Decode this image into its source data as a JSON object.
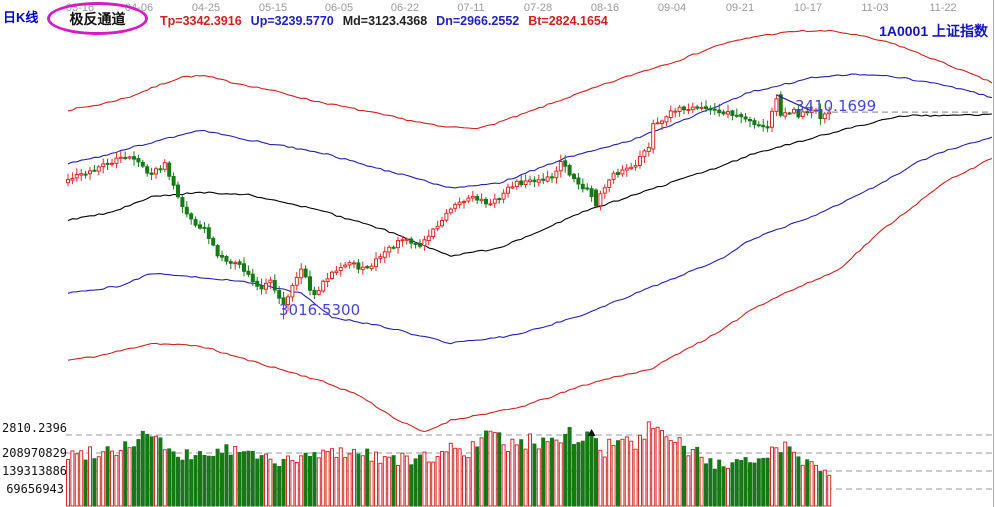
{
  "header": {
    "kline_label": "日K线",
    "channel_label": "极反通道",
    "params": {
      "tp": "Tp=3342.3916",
      "up": "Up=3239.5770",
      "md": "Md=3123.4368",
      "dn": "Dn=2966.2552",
      "bt": "Bt=2824.1654"
    },
    "symbol": "1A0001 上证指数"
  },
  "chart_data": {
    "type": "candlestick",
    "title": "1A0001 上证指数 日K线 极反通道",
    "x_axis": {
      "tick_labels": [
        "03-16",
        "04-06",
        "04-25",
        "05-15",
        "06-05",
        "06-22",
        "07-11",
        "07-28",
        "08-16",
        "09-04",
        "09-21",
        "10-17",
        "11-03",
        "11-22"
      ]
    },
    "y_axis": {
      "top_price": 3566,
      "bottom_price": 2810.2396
    },
    "indicator": {
      "name": "极反通道",
      "values": {
        "Tp": 3342.3916,
        "Up": 3239.577,
        "Md": 3123.4368,
        "Dn": 2966.2552,
        "Bt": 2824.1654
      }
    },
    "volume_axis": {
      "labels": [
        "208970829",
        "139313886",
        "69656943"
      ],
      "values": [
        208970829,
        139313886,
        69656943
      ],
      "gridline_step": 69656943,
      "gridline_count": 4
    },
    "annotations": {
      "last_price": 3410.1699,
      "last_price_label": "3410.1699",
      "low_price": 3016.53,
      "low_price_label": "3016.5300",
      "chart_min_label": "2810.2396",
      "volume_marker_index": 119,
      "leader_line": {
        "i1": 161,
        "price1": 3443,
        "i2": 169,
        "price2": 3412
      }
    },
    "series": {
      "candles_n": 174,
      "line_end_i": 210,
      "close_anchors": [
        [
          0,
          3281
        ],
        [
          4,
          3295
        ],
        [
          8,
          3308
        ],
        [
          11,
          3319
        ],
        [
          14,
          3328
        ],
        [
          19,
          3292
        ],
        [
          22,
          3313
        ],
        [
          27,
          3214
        ],
        [
          31,
          3186
        ],
        [
          34,
          3139
        ],
        [
          39,
          3120
        ],
        [
          44,
          3072
        ],
        [
          46,
          3091
        ],
        [
          48,
          3059
        ],
        [
          49,
          3048
        ],
        [
          53,
          3110
        ],
        [
          56,
          3059
        ],
        [
          60,
          3110
        ],
        [
          64,
          3123
        ],
        [
          68,
          3110
        ],
        [
          71,
          3139
        ],
        [
          76,
          3167
        ],
        [
          80,
          3157
        ],
        [
          87,
          3224
        ],
        [
          92,
          3252
        ],
        [
          96,
          3233
        ],
        [
          101,
          3272
        ],
        [
          106,
          3281
        ],
        [
          110,
          3287
        ],
        [
          112,
          3315
        ],
        [
          115,
          3281
        ],
        [
          118,
          3262
        ],
        [
          120,
          3240
        ],
        [
          124,
          3290
        ],
        [
          129,
          3313
        ],
        [
          132,
          3345
        ],
        [
          133,
          3385
        ],
        [
          136,
          3404
        ],
        [
          140,
          3418
        ],
        [
          144,
          3420
        ],
        [
          148,
          3410
        ],
        [
          152,
          3404
        ],
        [
          156,
          3389
        ],
        [
          159,
          3382
        ],
        [
          161,
          3438
        ],
        [
          162,
          3404
        ],
        [
          164,
          3410
        ],
        [
          165,
          3419
        ],
        [
          166,
          3403
        ],
        [
          167,
          3415
        ],
        [
          168,
          3408
        ],
        [
          169,
          3417
        ],
        [
          170,
          3414
        ],
        [
          171,
          3399
        ],
        [
          173,
          3410.1699
        ]
      ],
      "special_candles": [
        {
          "i": 49,
          "low": 3016.53
        },
        {
          "i": 120,
          "open": 3262,
          "close": 3232
        },
        {
          "i": 133,
          "open": 3340,
          "close": 3388
        },
        {
          "i": 162,
          "open": 3443,
          "close": 3404
        },
        {
          "i": 173,
          "close": 3410.1699
        }
      ],
      "channel": {
        "tp": [
          [
            0,
            3414
          ],
          [
            7,
            3424
          ],
          [
            14,
            3439
          ],
          [
            21,
            3462
          ],
          [
            26,
            3477
          ],
          [
            31,
            3479
          ],
          [
            37,
            3467
          ],
          [
            46,
            3452
          ],
          [
            55,
            3433
          ],
          [
            64,
            3418
          ],
          [
            75,
            3399
          ],
          [
            85,
            3382
          ],
          [
            94,
            3380
          ],
          [
            103,
            3405
          ],
          [
            112,
            3433
          ],
          [
            121,
            3460
          ],
          [
            130,
            3486
          ],
          [
            139,
            3509
          ],
          [
            148,
            3538
          ],
          [
            157,
            3555
          ],
          [
            166,
            3564
          ],
          [
            174,
            3564
          ],
          [
            180,
            3555
          ],
          [
            188,
            3539
          ],
          [
            196,
            3513
          ],
          [
            203,
            3490
          ],
          [
            210,
            3466
          ]
        ],
        "up": [
          [
            0,
            3313
          ],
          [
            7,
            3325
          ],
          [
            14,
            3342
          ],
          [
            21,
            3357
          ],
          [
            30,
            3376
          ],
          [
            41,
            3357
          ],
          [
            57,
            3334
          ],
          [
            72,
            3300
          ],
          [
            87,
            3266
          ],
          [
            98,
            3275
          ],
          [
            113,
            3323
          ],
          [
            128,
            3357
          ],
          [
            140,
            3395
          ],
          [
            155,
            3448
          ],
          [
            170,
            3477
          ],
          [
            180,
            3482
          ],
          [
            188,
            3477
          ],
          [
            200,
            3460
          ],
          [
            210,
            3438
          ]
        ],
        "md": [
          [
            0,
            3205
          ],
          [
            10,
            3220
          ],
          [
            19,
            3249
          ],
          [
            30,
            3258
          ],
          [
            41,
            3253
          ],
          [
            57,
            3224
          ],
          [
            72,
            3186
          ],
          [
            87,
            3137
          ],
          [
            98,
            3152
          ],
          [
            117,
            3220
          ],
          [
            132,
            3262
          ],
          [
            148,
            3306
          ],
          [
            155,
            3329
          ],
          [
            170,
            3363
          ],
          [
            185,
            3395
          ],
          [
            190,
            3403
          ],
          [
            210,
            3405
          ]
        ],
        "dn": [
          [
            0,
            3066
          ],
          [
            12,
            3080
          ],
          [
            19,
            3104
          ],
          [
            30,
            3097
          ],
          [
            41,
            3087
          ],
          [
            53,
            3066
          ],
          [
            60,
            3021
          ],
          [
            72,
            3002
          ],
          [
            87,
            2971
          ],
          [
            102,
            2987
          ],
          [
            117,
            3025
          ],
          [
            132,
            3076
          ],
          [
            148,
            3129
          ],
          [
            155,
            3167
          ],
          [
            170,
            3215
          ],
          [
            185,
            3275
          ],
          [
            193,
            3315
          ],
          [
            200,
            3338
          ],
          [
            210,
            3362
          ]
        ],
        "bt": [
          [
            0,
            2939
          ],
          [
            7,
            2947
          ],
          [
            19,
            2971
          ],
          [
            30,
            2966
          ],
          [
            41,
            2939
          ],
          [
            57,
            2901
          ],
          [
            66,
            2873
          ],
          [
            75,
            2825
          ],
          [
            81,
            2802
          ],
          [
            87,
            2825
          ],
          [
            94,
            2836
          ],
          [
            102,
            2848
          ],
          [
            110,
            2870
          ],
          [
            117,
            2891
          ],
          [
            125,
            2909
          ],
          [
            132,
            2920
          ],
          [
            140,
            2958
          ],
          [
            148,
            2992
          ],
          [
            155,
            3034
          ],
          [
            162,
            3063
          ],
          [
            175,
            3110
          ],
          [
            185,
            3186
          ],
          [
            193,
            3237
          ],
          [
            200,
            3281
          ],
          [
            210,
            3322
          ]
        ]
      },
      "volume_anchors_millions": [
        [
          0,
          193
        ],
        [
          5,
          210
        ],
        [
          12,
          225
        ],
        [
          19,
          286
        ],
        [
          24,
          185
        ],
        [
          30,
          200
        ],
        [
          37,
          215
        ],
        [
          44,
          190
        ],
        [
          50,
          170
        ],
        [
          57,
          200
        ],
        [
          64,
          215
        ],
        [
          71,
          190
        ],
        [
          78,
          175
        ],
        [
          85,
          200
        ],
        [
          88,
          230
        ],
        [
          91,
          215
        ],
        [
          96,
          271
        ],
        [
          98,
          255
        ],
        [
          102,
          230
        ],
        [
          105,
          245
        ],
        [
          108,
          260
        ],
        [
          112,
          270
        ],
        [
          114,
          287
        ],
        [
          116,
          240
        ],
        [
          119,
          272
        ],
        [
          122,
          215
        ],
        [
          125,
          250
        ],
        [
          129,
          235
        ],
        [
          132,
          290
        ],
        [
          135,
          260
        ],
        [
          137,
          275
        ],
        [
          140,
          220
        ],
        [
          144,
          200
        ],
        [
          147,
          160
        ],
        [
          150,
          150
        ],
        [
          154,
          165
        ],
        [
          157,
          195
        ],
        [
          161,
          225
        ],
        [
          164,
          235
        ],
        [
          166,
          190
        ],
        [
          168,
          165
        ],
        [
          170,
          170
        ],
        [
          171,
          140
        ],
        [
          172,
          160
        ],
        [
          173,
          135
        ]
      ]
    },
    "colors": {
      "up_red": "#d92b2b",
      "down_green": "#187818",
      "line_red": "#cc2222",
      "line_blue": "#2222aa",
      "line_mid": "#000000",
      "annotation_blue": "#4545cf",
      "leader_navy": "#24248a",
      "grid_gray": "#999999",
      "badge_magenta": "#d619c9",
      "header_blue": "#1313bb",
      "date_gray": "#9a9a9a"
    }
  }
}
